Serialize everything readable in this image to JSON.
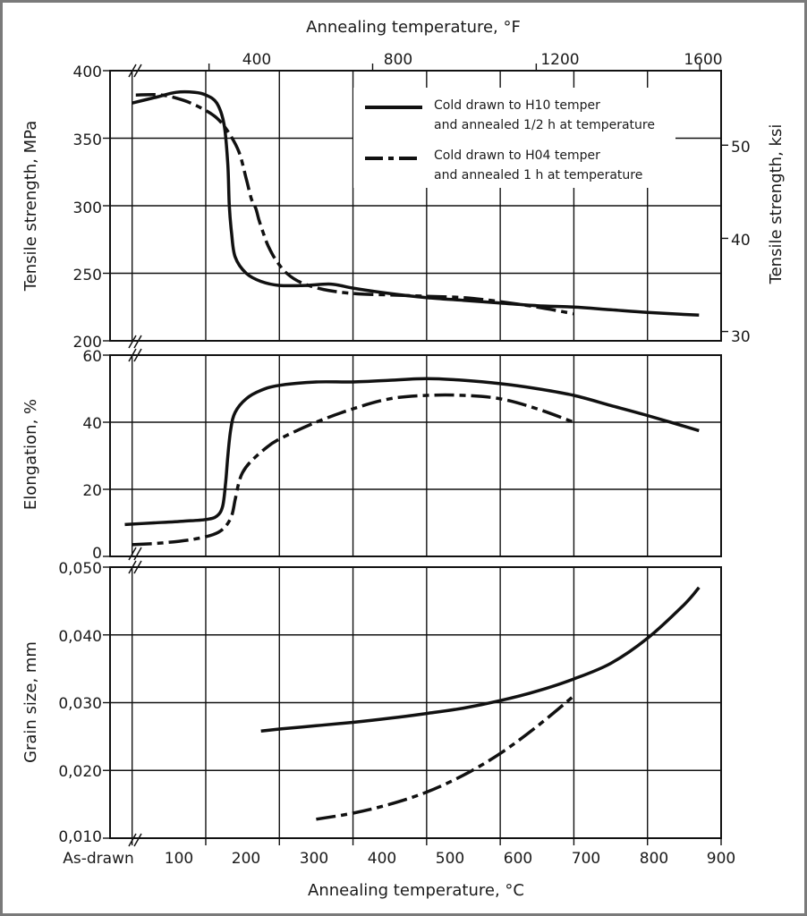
{
  "chart_data": [
    {
      "type": "line",
      "panel": "tensile-strength",
      "ylabel": "Tensile strength, MPa",
      "ylabel_right": "Tensile strength, ksi",
      "ylim": [
        200,
        400
      ],
      "yticks": [
        "200",
        "250",
        "300",
        "350",
        "400"
      ],
      "right_ylim_ksi": [
        29,
        58
      ],
      "right_yticks": [
        "30",
        "40",
        "50"
      ],
      "series": [
        {
          "name": "H10",
          "style": "solid",
          "x": [
            100,
            130,
            160,
            185,
            200,
            215,
            225,
            230,
            232,
            235,
            240,
            255,
            275,
            300,
            335,
            370,
            400,
            450,
            500,
            550,
            600,
            650,
            700,
            750,
            800,
            870
          ],
          "y": [
            376,
            380,
            384,
            384,
            382,
            376,
            360,
            330,
            300,
            280,
            262,
            250,
            244,
            241,
            241,
            242,
            239,
            235,
            232,
            230,
            228,
            226,
            225,
            223,
            221,
            219
          ]
        },
        {
          "name": "H04",
          "style": "dashed",
          "x": [
            105,
            140,
            170,
            195,
            215,
            230,
            245,
            255,
            262,
            268,
            272,
            278,
            285,
            295,
            310,
            330,
            360,
            400,
            450,
            500,
            550,
            600,
            650,
            700
          ],
          "y": [
            382,
            382,
            378,
            372,
            365,
            355,
            340,
            320,
            305,
            298,
            290,
            280,
            270,
            260,
            250,
            243,
            238,
            235,
            234,
            233,
            232,
            229,
            225,
            220
          ]
        }
      ]
    },
    {
      "type": "line",
      "panel": "elongation",
      "ylabel": "Elongation, %",
      "ylim": [
        0,
        60
      ],
      "yticks": [
        "0",
        "20",
        "40",
        "60"
      ],
      "series": [
        {
          "name": "H10",
          "style": "solid",
          "x": [
            90,
            130,
            170,
            200,
            215,
            223,
            227,
            230,
            234,
            240,
            255,
            275,
            300,
            350,
            400,
            450,
            500,
            550,
            600,
            650,
            700,
            750,
            800,
            870
          ],
          "y": [
            9.5,
            10,
            10.5,
            11,
            12,
            15,
            22,
            30,
            38,
            43,
            47,
            49.5,
            51,
            52,
            52,
            52.5,
            53,
            52.5,
            51.5,
            50,
            48,
            45,
            42,
            37.5
          ]
        },
        {
          "name": "H04",
          "style": "dashed",
          "x": [
            100,
            140,
            180,
            210,
            225,
            235,
            240,
            245,
            250,
            260,
            280,
            300,
            350,
            400,
            450,
            500,
            550,
            600,
            650,
            700
          ],
          "y": [
            3.5,
            4,
            5,
            6.5,
            8.5,
            12,
            17,
            22,
            25,
            28,
            32,
            35,
            40,
            44,
            47,
            48,
            48,
            47,
            44,
            40
          ]
        }
      ]
    },
    {
      "type": "line",
      "panel": "grain-size",
      "ylabel": "Grain size, mm",
      "ylim": [
        0.01,
        0.05
      ],
      "yticks": [
        "0,010",
        "0,020",
        "0,030",
        "0,040",
        "0,050"
      ],
      "series": [
        {
          "name": "H10",
          "style": "solid",
          "x": [
            275,
            300,
            350,
            400,
            450,
            500,
            550,
            600,
            650,
            700,
            750,
            800,
            850,
            870
          ],
          "y": [
            0.0258,
            0.0261,
            0.0266,
            0.0271,
            0.0277,
            0.0284,
            0.0292,
            0.0303,
            0.0317,
            0.0335,
            0.0358,
            0.0395,
            0.0445,
            0.047
          ]
        },
        {
          "name": "H04",
          "style": "dashed",
          "x": [
            350,
            400,
            450,
            500,
            550,
            600,
            650,
            700
          ],
          "y": [
            0.0128,
            0.0137,
            0.015,
            0.0168,
            0.0193,
            0.0225,
            0.0265,
            0.031
          ]
        }
      ]
    }
  ],
  "axes": {
    "x_label": "Annealing temperature, °C",
    "x_range_c": [
      70,
      900
    ],
    "x_ticks": [
      "100",
      "200",
      "300",
      "400",
      "500",
      "600",
      "700",
      "800",
      "900"
    ],
    "x_first_label": "As-drawn",
    "top_label": "Annealing temperature, °F",
    "top_ticks": [
      "400",
      "800",
      "1200",
      "1600"
    ]
  },
  "legend": {
    "h10_line1": "Cold drawn to H10 temper",
    "h10_line2": "and annealed 1/2 h at temperature",
    "h04_line1": "Cold drawn to H04 temper",
    "h04_line2": "and annealed 1 h at temperature"
  },
  "colors": {
    "line": "#111111",
    "grid": "#111111",
    "border": "#7a7a7a",
    "background": "#ffffff"
  }
}
